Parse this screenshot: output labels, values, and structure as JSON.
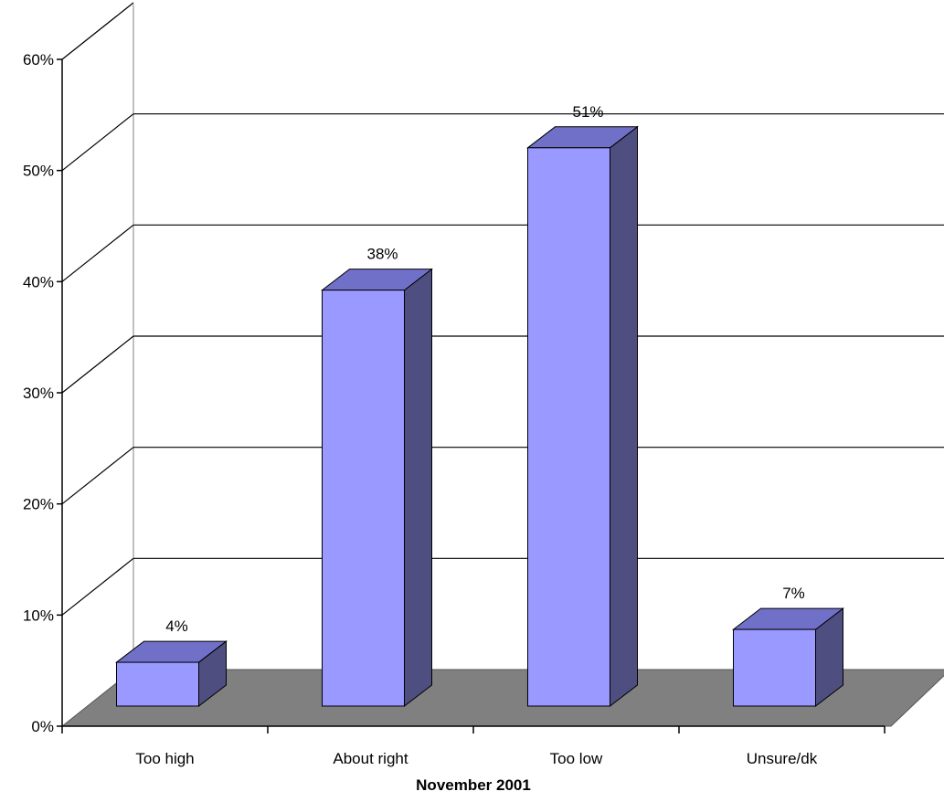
{
  "chart_data": {
    "type": "bar",
    "categories": [
      "Too high",
      "About right",
      "Too low",
      "Unsure/dk"
    ],
    "values": [
      4,
      38,
      51,
      7
    ],
    "value_labels": [
      "4%",
      "38%",
      "51%",
      "7%"
    ],
    "xlabel": "November 2001",
    "ylabel": "",
    "ylim": [
      0,
      60
    ],
    "y_ticks": [
      0,
      10,
      20,
      30,
      40,
      50,
      60
    ],
    "y_tick_labels": [
      "0%",
      "10%",
      "20%",
      "30%",
      "40%",
      "50%",
      "60%"
    ],
    "grid": true,
    "style": "3d-column",
    "colors": {
      "bar_front": "#9999ff",
      "bar_top": "#7070c8",
      "bar_side": "#4e4e80",
      "floor": "#808080",
      "gridline": "#000000",
      "wall_edge": "#808080"
    }
  }
}
